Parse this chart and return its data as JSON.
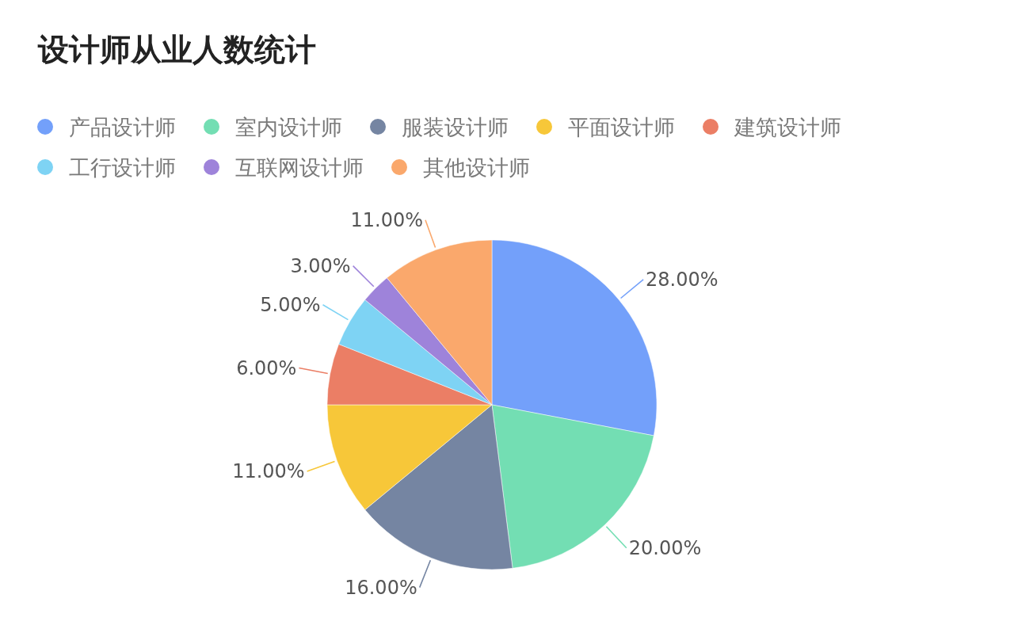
{
  "chart_data": {
    "type": "pie",
    "title": "设计师从业人数统计",
    "categories": [
      "产品设计师",
      "室内设计师",
      "服装设计师",
      "平面设计师",
      "建筑设计师",
      "工行设计师",
      "互联网设计师",
      "其他设计师"
    ],
    "values": [
      28,
      20,
      16,
      11,
      6,
      5,
      3,
      11
    ],
    "colors": [
      "#73a0fa",
      "#73deb3",
      "#7585a2",
      "#f7c739",
      "#eb7e65",
      "#7ed3f4",
      "#9e83da",
      "#faa86c"
    ],
    "value_labels": [
      "28.00%",
      "20.00%",
      "16.00%",
      "11.00%",
      "6.00%",
      "5.00%",
      "3.00%",
      "11.00%"
    ],
    "legend": "top left"
  }
}
